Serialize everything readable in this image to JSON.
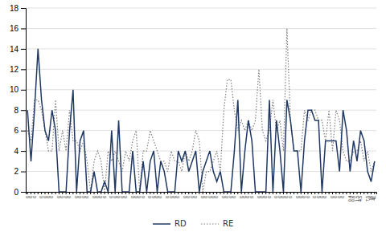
{
  "chart_data": {
    "type": "line",
    "categories": [
      "0",
      "0",
      "0",
      null,
      "0",
      "0",
      "0",
      "0",
      null,
      "0",
      "0",
      "0",
      "0",
      null,
      "0",
      "0",
      "0",
      "0",
      null,
      "0",
      "0",
      "0",
      "0",
      null,
      "0",
      "0",
      "0",
      "0",
      "0",
      null,
      "0",
      "0",
      "0",
      "0",
      null,
      "0",
      "0",
      "0",
      "0",
      null,
      "0",
      "0",
      "0",
      "0",
      null,
      "0",
      "0",
      "0",
      "0",
      null,
      "0",
      "0",
      "0",
      "0",
      "0",
      null,
      "0",
      "0",
      "0",
      "0",
      null,
      "0",
      "0",
      "0",
      "0",
      null,
      "0",
      "0",
      "0",
      "0",
      null,
      "0",
      "0",
      "0",
      "0",
      "0",
      null,
      "0",
      "0",
      "0",
      "0",
      null,
      "0",
      "0",
      "0",
      "0",
      null,
      "0",
      "0",
      "0",
      "0",
      null,
      "0.4",
      "0.6",
      "1.5",
      "4.5",
      null,
      "7.5",
      "16",
      "41"
    ],
    "series": [
      {
        "name": "RD",
        "color": "#1F3864",
        "line_style": "solid",
        "values": [
          8,
          3,
          8,
          14,
          9,
          6,
          5,
          8,
          6,
          0,
          0,
          0,
          6,
          10,
          0,
          5,
          6,
          0,
          0,
          2,
          0,
          0,
          1,
          0,
          6,
          0,
          7,
          0,
          0,
          0,
          4,
          0,
          0,
          3,
          0,
          3,
          4,
          0,
          3,
          2,
          0,
          0,
          0,
          4,
          3,
          4,
          2,
          3,
          4,
          0,
          2,
          3,
          4,
          2,
          1,
          2,
          0,
          0,
          0,
          4,
          9,
          0,
          4,
          7,
          5,
          0,
          0,
          0,
          0,
          9,
          0,
          7,
          4,
          0,
          9,
          7,
          4,
          4,
          0,
          5,
          8,
          8,
          7,
          7,
          0,
          5,
          5,
          5,
          5,
          2,
          8,
          6,
          2,
          5,
          3,
          6,
          5,
          2,
          1,
          3
        ]
      },
      {
        "name": "RE",
        "color": "#808080",
        "line_style": "dotted",
        "values": [
          6,
          5,
          9,
          9,
          8,
          6,
          4,
          4,
          9,
          4,
          6,
          4,
          8,
          5,
          5,
          4,
          5,
          3,
          0,
          3,
          4,
          3,
          0,
          4,
          3,
          4,
          3,
          2,
          4,
          3,
          5,
          6,
          0,
          4,
          4,
          6,
          5,
          4,
          3,
          3,
          2,
          4,
          3,
          3,
          2,
          4,
          3,
          4,
          6,
          5,
          0,
          2,
          2,
          3,
          4,
          2,
          8,
          11,
          11,
          8,
          6,
          7,
          6,
          7,
          6,
          7,
          12,
          6,
          5,
          6,
          9,
          6,
          7,
          4,
          16,
          7,
          4,
          4,
          4,
          8,
          7,
          8,
          8,
          7,
          7,
          5,
          8,
          4,
          8,
          7,
          4,
          3,
          3,
          4,
          4,
          5,
          3,
          4,
          2,
          3
        ]
      }
    ],
    "ylim": [
      0,
      18
    ],
    "yticks": [
      0,
      2,
      4,
      6,
      8,
      10,
      12,
      14,
      16,
      18
    ],
    "grid": true,
    "legend": "bottom"
  }
}
